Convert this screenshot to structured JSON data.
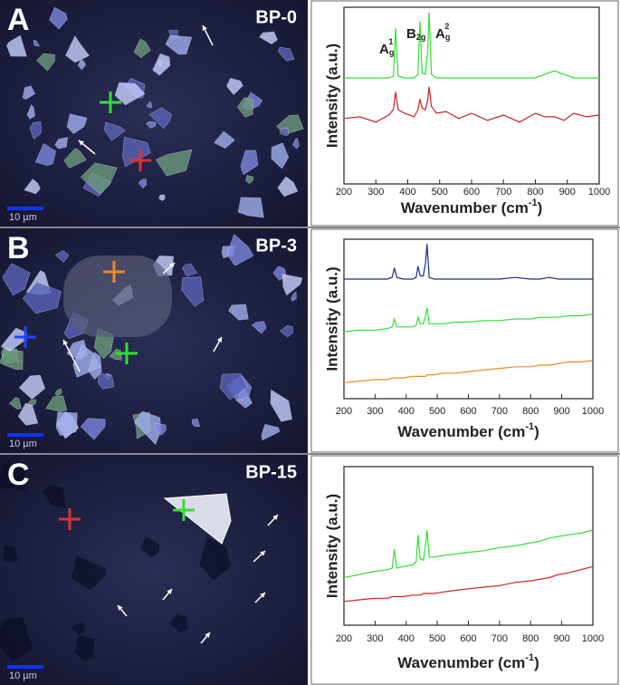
{
  "panels": [
    {
      "label": "A",
      "sample": "BP-0",
      "scale": "10 µm"
    },
    {
      "label": "B",
      "sample": "BP-3",
      "scale": "10 µm"
    },
    {
      "label": "C",
      "sample": "BP-15",
      "scale": "10 µm"
    }
  ],
  "chart_data": [
    {
      "type": "line",
      "y_label": "Intensity (a.u.)",
      "x_label": {
        "text": "Wavenumber (cm",
        "sup": "-1",
        "end": ")"
      },
      "annotations": [
        {
          "text": "A",
          "sub": "g",
          "sup": "1"
        },
        {
          "text": "B",
          "sub": "2g"
        },
        {
          "text": "A",
          "sub": "g",
          "sup": "2"
        }
      ],
      "xlim": [
        200,
        1000
      ],
      "xticks": [
        200,
        300,
        400,
        500,
        600,
        700,
        800,
        900,
        1000
      ],
      "ylim": [
        0,
        100
      ],
      "x": [
        200,
        250,
        300,
        340,
        355,
        362,
        370,
        390,
        420,
        432,
        438,
        445,
        455,
        462,
        467,
        474,
        490,
        520,
        560,
        600,
        650,
        700,
        750,
        800,
        830,
        860,
        890,
        920,
        960,
        1000
      ],
      "series": [
        {
          "color": "#33dd33",
          "values": [
            60,
            60,
            60,
            60,
            61,
            88,
            61,
            60,
            60,
            62,
            92,
            63,
            62,
            74,
            97,
            62,
            60,
            60,
            60,
            60,
            60,
            60,
            60,
            60,
            62,
            64,
            62,
            60,
            60,
            60
          ]
        },
        {
          "color": "#cc2222",
          "values": [
            37,
            38,
            35,
            39,
            42,
            52,
            42,
            40,
            38,
            42,
            48,
            43,
            42,
            47,
            55,
            44,
            40,
            41,
            37,
            40,
            36,
            39,
            35,
            40,
            38,
            38,
            36,
            40,
            38,
            39
          ]
        }
      ]
    },
    {
      "type": "line",
      "y_label": "Intensity (a.u.)",
      "x_label": {
        "text": "Wavenumber (cm",
        "sup": "-1",
        "end": ")"
      },
      "xlim": [
        200,
        1000
      ],
      "xticks": [
        200,
        300,
        400,
        500,
        600,
        700,
        800,
        900,
        1000
      ],
      "ylim": [
        0,
        100
      ],
      "x": [
        200,
        250,
        300,
        340,
        355,
        362,
        370,
        390,
        420,
        432,
        438,
        445,
        455,
        462,
        467,
        474,
        490,
        520,
        560,
        600,
        650,
        700,
        750,
        800,
        830,
        860,
        890,
        920,
        960,
        1000
      ],
      "series": [
        {
          "color": "#1a2a99",
          "values": [
            75,
            75,
            75,
            75,
            76,
            82,
            76,
            75,
            75,
            76,
            83,
            77,
            77,
            85,
            97,
            76,
            75,
            75,
            75,
            75,
            75,
            75,
            76,
            75,
            75,
            76,
            75,
            75,
            75,
            75
          ]
        },
        {
          "color": "#33dd33",
          "values": [
            42,
            43,
            43,
            44,
            45,
            50,
            45,
            45,
            45,
            46,
            51,
            47,
            47,
            52,
            57,
            47,
            47,
            47,
            48,
            48,
            49,
            49,
            50,
            50,
            51,
            51,
            51,
            52,
            52,
            53
          ]
        },
        {
          "color": "#ee8822",
          "values": [
            10,
            11,
            12,
            12,
            13,
            13,
            13,
            13,
            14,
            14,
            14,
            14,
            14,
            14,
            15,
            15,
            15,
            16,
            16,
            17,
            18,
            19,
            20,
            20,
            21,
            21,
            22,
            23,
            23,
            24
          ]
        }
      ]
    },
    {
      "type": "line",
      "y_label": "Intensity (a.u.)",
      "x_label": {
        "text": "Wavenumber (cm",
        "sup": "-1",
        "end": ")"
      },
      "xlim": [
        200,
        1000
      ],
      "xticks": [
        200,
        300,
        400,
        500,
        600,
        700,
        800,
        900,
        1000
      ],
      "ylim": [
        0,
        100
      ],
      "x": [
        200,
        250,
        300,
        340,
        355,
        362,
        370,
        390,
        420,
        432,
        438,
        445,
        455,
        462,
        467,
        474,
        490,
        520,
        560,
        600,
        650,
        700,
        750,
        800,
        830,
        860,
        890,
        920,
        960,
        1000
      ],
      "series": [
        {
          "color": "#33dd33",
          "values": [
            30,
            32,
            34,
            35,
            36,
            48,
            36,
            37,
            38,
            40,
            57,
            42,
            41,
            50,
            60,
            43,
            43,
            44,
            45,
            46,
            47,
            49,
            50,
            52,
            53,
            55,
            56,
            57,
            58,
            60
          ]
        },
        {
          "color": "#cc2222",
          "values": [
            15,
            16,
            17,
            17,
            18,
            18,
            18,
            18,
            19,
            19,
            19,
            19,
            20,
            20,
            20,
            20,
            20,
            21,
            22,
            23,
            24,
            25,
            27,
            28,
            29,
            30,
            32,
            33,
            35,
            37
          ]
        }
      ]
    }
  ]
}
